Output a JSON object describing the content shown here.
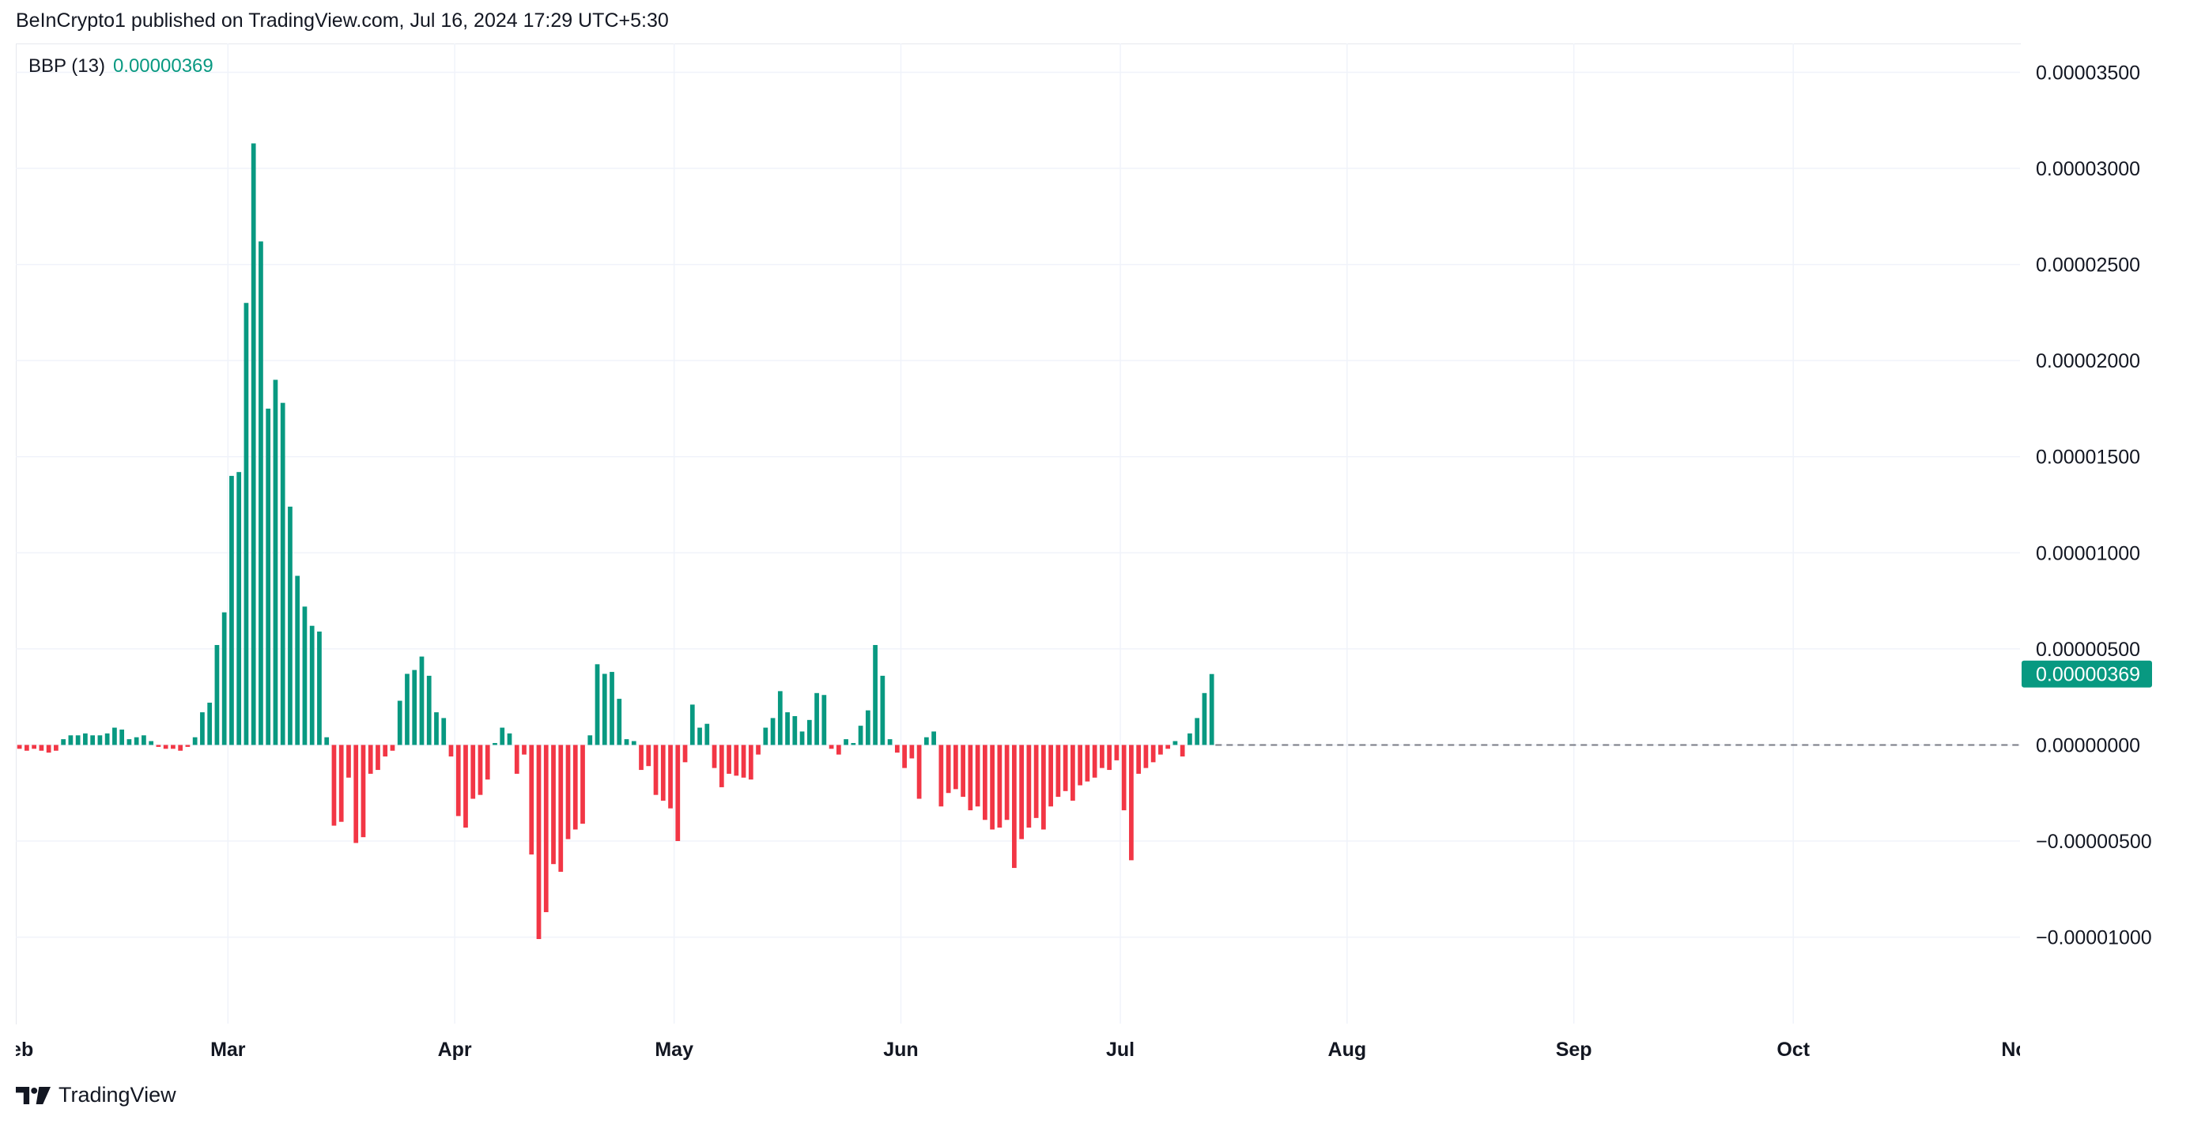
{
  "header": {
    "published": "BeInCrypto1 published on TradingView.com, Jul 16, 2024 17:29 UTC+5:30"
  },
  "legend": {
    "name": "BBP (13)",
    "value": "0.00000369"
  },
  "footer": {
    "brand": "TradingView",
    "logo_icon": "tradingview-logo-icon"
  },
  "colors": {
    "positive": "#089981",
    "negative": "#f23645",
    "grid": "#f0f3fa",
    "text": "#131722",
    "zero_line": "#787b86"
  },
  "chart_data": {
    "type": "bar",
    "title": "",
    "xlabel": "",
    "ylabel": "",
    "ylim": [
      -1.45e-05,
      3.65e-05
    ],
    "x_range": [
      "2024-02-01",
      "2024-11-01"
    ],
    "grid": true,
    "y_ticks": [
      {
        "value": 3.5e-05,
        "label": "0.00003500"
      },
      {
        "value": 3e-05,
        "label": "0.00003000"
      },
      {
        "value": 2.5e-05,
        "label": "0.00002500"
      },
      {
        "value": 2e-05,
        "label": "0.00002000"
      },
      {
        "value": 1.5e-05,
        "label": "0.00001500"
      },
      {
        "value": 1e-05,
        "label": "0.00001000"
      },
      {
        "value": 5e-06,
        "label": "0.00000500"
      },
      {
        "value": 0,
        "label": "0.00000000"
      },
      {
        "value": -5e-06,
        "label": "−0.00000500"
      },
      {
        "value": -1e-05,
        "label": "−0.00001000"
      }
    ],
    "x_ticks": [
      {
        "date": "2024-02-01",
        "label": "Feb"
      },
      {
        "date": "2024-03-01",
        "label": "Mar"
      },
      {
        "date": "2024-04-01",
        "label": "Apr"
      },
      {
        "date": "2024-05-01",
        "label": "May"
      },
      {
        "date": "2024-06-01",
        "label": "Jun"
      },
      {
        "date": "2024-07-01",
        "label": "Jul"
      },
      {
        "date": "2024-08-01",
        "label": "Aug"
      },
      {
        "date": "2024-09-01",
        "label": "Sep"
      },
      {
        "date": "2024-10-01",
        "label": "Oct"
      },
      {
        "date": "2024-11-01",
        "label": "Nov"
      }
    ],
    "last_value": {
      "value": 3.69e-06,
      "label": "0.00000369"
    },
    "series": [
      {
        "name": "BBP (13)",
        "start_date": "2024-02-01",
        "values": [
          -2e-07,
          -3e-07,
          -2e-07,
          -3e-07,
          -4e-07,
          -3e-07,
          3e-07,
          5e-07,
          5e-07,
          6e-07,
          5e-07,
          5e-07,
          6e-07,
          9e-07,
          8e-07,
          3e-07,
          4e-07,
          5e-07,
          2e-07,
          -1e-07,
          -2e-07,
          -2e-07,
          -3e-07,
          -1e-07,
          4e-07,
          1.7e-06,
          2.2e-06,
          5.2e-06,
          6.9e-06,
          1.4e-05,
          1.42e-05,
          2.3e-05,
          3.13e-05,
          2.62e-05,
          1.75e-05,
          1.9e-05,
          1.78e-05,
          1.24e-05,
          8.8e-06,
          7.2e-06,
          6.2e-06,
          5.9e-06,
          4e-07,
          -4.2e-06,
          -4e-06,
          -1.7e-06,
          -5.1e-06,
          -4.8e-06,
          -1.5e-06,
          -1.3e-06,
          -6e-07,
          -3e-07,
          2.3e-06,
          3.7e-06,
          3.9e-06,
          4.6e-06,
          3.6e-06,
          1.7e-06,
          1.4e-06,
          -6e-07,
          -3.7e-06,
          -4.3e-06,
          -2.8e-06,
          -2.6e-06,
          -1.8e-06,
          1e-07,
          9e-07,
          6e-07,
          -1.5e-06,
          -5e-07,
          -5.7e-06,
          -1.01e-05,
          -8.7e-06,
          -6.2e-06,
          -6.6e-06,
          -4.9e-06,
          -4.4e-06,
          -4.1e-06,
          5e-07,
          4.2e-06,
          3.7e-06,
          3.8e-06,
          2.4e-06,
          3e-07,
          2e-07,
          -1.3e-06,
          -1.1e-06,
          -2.6e-06,
          -2.9e-06,
          -3.3e-06,
          -5e-06,
          -9e-07,
          2.1e-06,
          9e-07,
          1.1e-06,
          -1.2e-06,
          -2.2e-06,
          -1.5e-06,
          -1.6e-06,
          -1.7e-06,
          -1.8e-06,
          -5e-07,
          9e-07,
          1.4e-06,
          2.8e-06,
          1.7e-06,
          1.5e-06,
          7e-07,
          1.3e-06,
          2.7e-06,
          2.6e-06,
          -2e-07,
          -5e-07,
          3e-07,
          1e-07,
          1e-06,
          1.8e-06,
          5.2e-06,
          3.6e-06,
          3e-07,
          -4e-07,
          -1.2e-06,
          -7e-07,
          -2.8e-06,
          4e-07,
          7e-07,
          -3.2e-06,
          -2.5e-06,
          -2.3e-06,
          -2.7e-06,
          -3.4e-06,
          -3.2e-06,
          -3.9e-06,
          -4.4e-06,
          -4.3e-06,
          -3.9e-06,
          -6.4e-06,
          -4.9e-06,
          -4.3e-06,
          -3.8e-06,
          -4.4e-06,
          -3.2e-06,
          -2.7e-06,
          -2.4e-06,
          -2.9e-06,
          -2.1e-06,
          -1.9e-06,
          -1.7e-06,
          -1.2e-06,
          -1.3e-06,
          -8e-07,
          -3.4e-06,
          -6e-06,
          -1.5e-06,
          -1.2e-06,
          -9e-07,
          -5e-07,
          -2e-07,
          2e-07,
          -6e-07,
          6e-07,
          1.4e-06,
          2.7e-06,
          3.69e-06
        ]
      }
    ]
  }
}
